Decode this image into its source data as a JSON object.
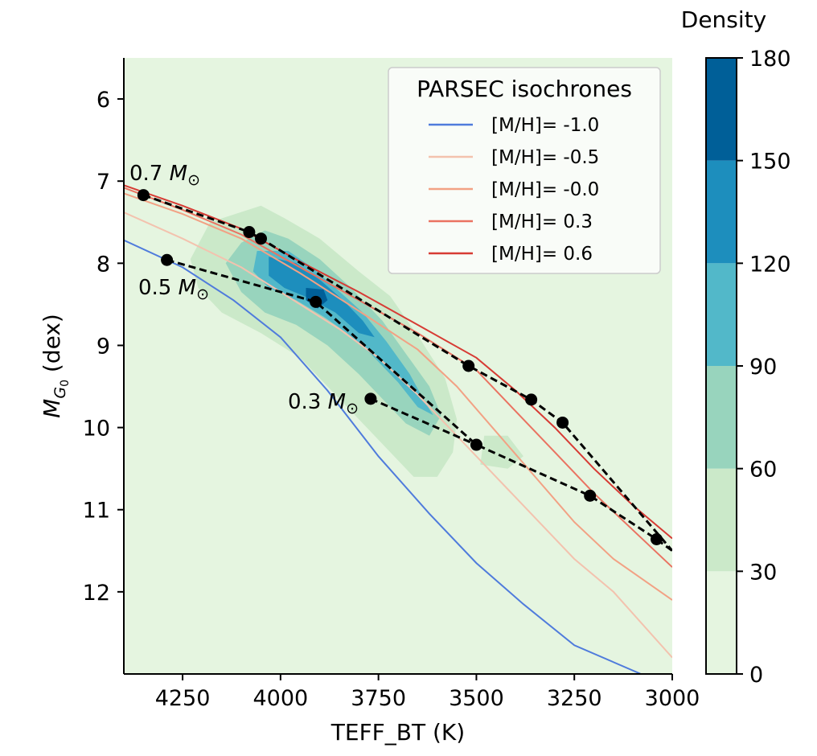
{
  "chart_data": {
    "type": "line",
    "xlabel": "TEFF_BT (K)",
    "ylabel": "M_{G_0} (dex)",
    "xlim": [
      4400,
      3000
    ],
    "ylim": [
      13,
      5.5
    ],
    "xticks": [
      4250,
      4000,
      3750,
      3500,
      3250,
      3000
    ],
    "yticks": [
      6,
      7,
      8,
      9,
      10,
      11,
      12
    ],
    "background_color": "#e5f5e0",
    "legend": {
      "title": "PARSEC isochrones",
      "position": "top-right"
    },
    "series": [
      {
        "name": "[M/H]= -1.0",
        "color": "#4f7bdc",
        "x": [
          4400,
          4250,
          4120,
          4000,
          3880,
          3750,
          3620,
          3500,
          3380,
          3250,
          3080
        ],
        "y": [
          7.72,
          8.05,
          8.45,
          8.9,
          9.55,
          10.35,
          11.05,
          11.65,
          12.15,
          12.65,
          13.0
        ]
      },
      {
        "name": "[M/H]= -0.5",
        "color": "#f3c2ae",
        "x": [
          4400,
          4250,
          4100,
          3950,
          3850,
          3750,
          3650,
          3550,
          3450,
          3350,
          3250,
          3150,
          3000
        ],
        "y": [
          7.38,
          7.7,
          8.05,
          8.5,
          8.8,
          9.15,
          9.6,
          10.1,
          10.6,
          11.1,
          11.6,
          12.0,
          12.8
        ]
      },
      {
        "name": "[M/H]= -0.0",
        "color": "#f2a184",
        "x": [
          4400,
          4250,
          4100,
          3950,
          3800,
          3650,
          3550,
          3450,
          3350,
          3250,
          3150,
          3000
        ],
        "y": [
          7.15,
          7.4,
          7.7,
          8.12,
          8.58,
          9.05,
          9.5,
          10.05,
          10.6,
          11.15,
          11.6,
          12.1
        ]
      },
      {
        "name": "[M/H]= 0.3",
        "color": "#ea7261",
        "x": [
          4400,
          4250,
          4100,
          3950,
          3800,
          3650,
          3500,
          3400,
          3300,
          3200,
          3100,
          3000
        ],
        "y": [
          7.08,
          7.35,
          7.65,
          8.05,
          8.45,
          8.85,
          9.3,
          9.8,
          10.3,
          10.8,
          11.25,
          11.7
        ]
      },
      {
        "name": "[M/H]= 0.6",
        "color": "#d73b34",
        "x": [
          4400,
          4250,
          4100,
          3950,
          3800,
          3650,
          3500,
          3400,
          3300,
          3200,
          3100,
          3000
        ],
        "y": [
          7.05,
          7.3,
          7.58,
          7.98,
          8.35,
          8.75,
          9.15,
          9.55,
          10.0,
          10.5,
          10.95,
          11.35
        ]
      }
    ],
    "mass_tracks": [
      {
        "label": "0.7 M⊙",
        "points": [
          [
            4350,
            7.17
          ],
          [
            4080,
            7.62
          ],
          [
            4050,
            7.7
          ],
          [
            3520,
            9.25
          ],
          [
            3360,
            9.66
          ],
          [
            3280,
            9.94
          ],
          [
            3000,
            11.5
          ]
        ]
      },
      {
        "label": "0.5 M⊙",
        "points": [
          [
            4290,
            7.96
          ],
          [
            3910,
            8.47
          ],
          [
            3500,
            10.21
          ],
          [
            3210,
            10.83
          ],
          [
            3040,
            11.36
          ],
          [
            3000,
            11.5
          ]
        ]
      },
      {
        "label": "0.3 M⊙",
        "points": [
          [
            3770,
            9.65
          ]
        ]
      }
    ],
    "density": {
      "title": "Density",
      "levels": [
        0,
        30,
        60,
        90,
        120,
        150,
        180
      ],
      "colors": [
        "#e5f5e0",
        "#cbe9c9",
        "#98d4bd",
        "#52b8c9",
        "#1d8ebd",
        "#005f98"
      ]
    }
  }
}
